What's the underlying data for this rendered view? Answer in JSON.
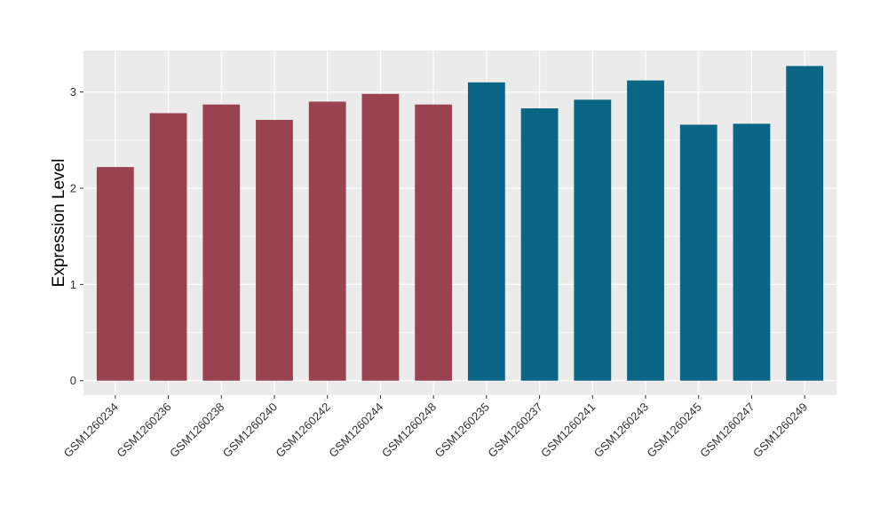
{
  "chart_data": {
    "type": "bar",
    "title": "",
    "xlabel": "",
    "ylabel": "Expression Level",
    "ylim": [
      -0.15,
      3.43
    ],
    "yticks": [
      0,
      1,
      2,
      3
    ],
    "ytick_labels": [
      "0",
      "1",
      "2",
      "3"
    ],
    "grid": true,
    "categories": [
      "GSM1260234",
      "GSM1260236",
      "GSM1260238",
      "GSM1260240",
      "GSM1260242",
      "GSM1260244",
      "GSM1260248",
      "GSM1260235",
      "GSM1260237",
      "GSM1260241",
      "GSM1260243",
      "GSM1260245",
      "GSM1260247",
      "GSM1260249"
    ],
    "values": [
      2.22,
      2.78,
      2.87,
      2.71,
      2.9,
      2.98,
      2.87,
      3.1,
      2.83,
      2.92,
      3.12,
      2.66,
      2.67,
      3.27
    ],
    "groups": [
      0,
      0,
      0,
      0,
      0,
      0,
      0,
      1,
      1,
      1,
      1,
      1,
      1,
      1
    ],
    "group_colors": [
      "#9A4350",
      "#0B6585"
    ],
    "panel_color": "#EBEBEB"
  }
}
